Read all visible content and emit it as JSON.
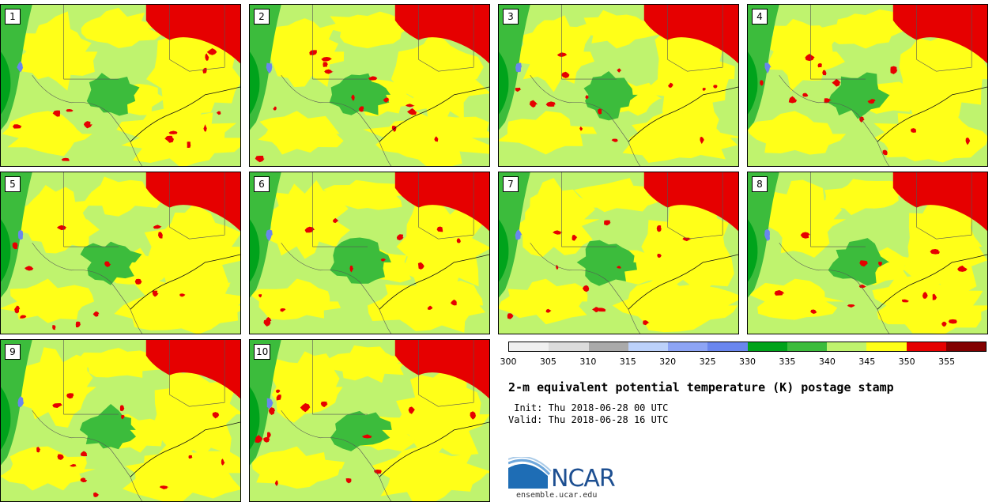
{
  "panels": [
    {
      "label": "1"
    },
    {
      "label": "2"
    },
    {
      "label": "3"
    },
    {
      "label": "4"
    },
    {
      "label": "5"
    },
    {
      "label": "6"
    },
    {
      "label": "7"
    },
    {
      "label": "8"
    },
    {
      "label": "9"
    },
    {
      "label": "10"
    }
  ],
  "colorbar": {
    "colors": [
      "#f0f0f0",
      "#dcdcdc",
      "#aaaaaa",
      "#bcd1fa",
      "#8da4f5",
      "#6a86ee",
      "#00a31b",
      "#3cbc3c",
      "#bff36e",
      "#ffff18",
      "#e60000",
      "#820000"
    ],
    "ticks": [
      "300",
      "305",
      "310",
      "315",
      "320",
      "325",
      "330",
      "335",
      "340",
      "345",
      "350",
      "355"
    ]
  },
  "info": {
    "title": "2-m equivalent potential temperature (K) postage stamp",
    "init": " Init: Thu 2018-06-28 00 UTC",
    "valid": "Valid: Thu 2018-06-28 16 UTC"
  },
  "logo": {
    "text": "NCAR",
    "site": "ensemble.ucar.edu"
  }
}
